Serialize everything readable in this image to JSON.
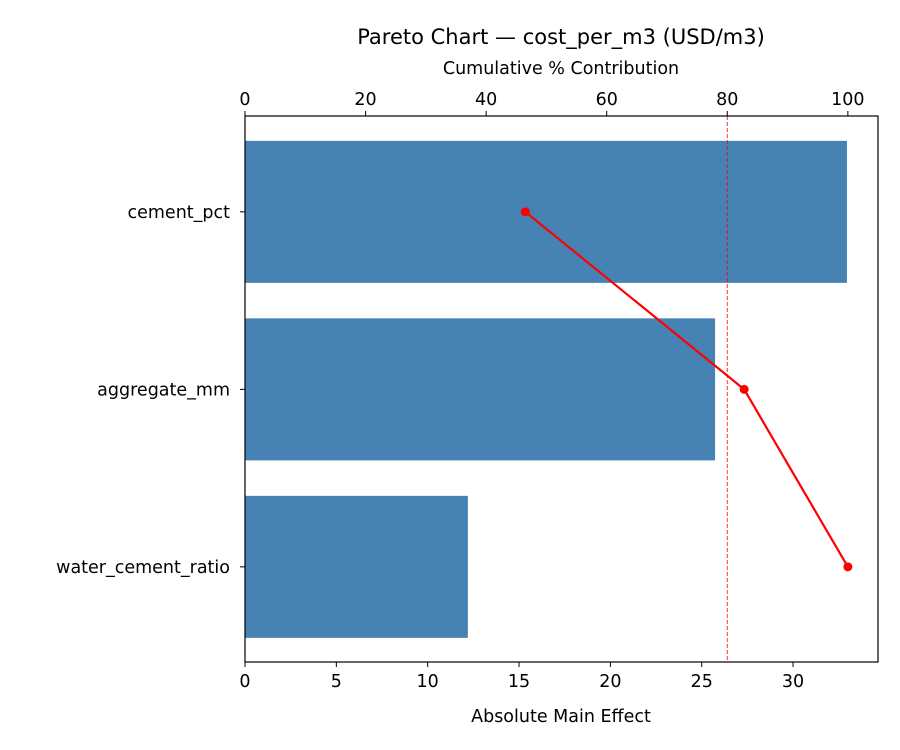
{
  "chart_data": {
    "type": "bar",
    "orientation": "horizontal",
    "title": "Pareto Chart — cost_per_m3 (USD/m3)",
    "xlabel": "Absolute Main Effect",
    "x2label": "Cumulative % Contribution",
    "categories": [
      "cement_pct",
      "aggregate_mm",
      "water_cement_ratio"
    ],
    "values": [
      32.95,
      25.73,
      12.2
    ],
    "cumulative_pct": [
      46.5,
      82.8,
      100
    ],
    "threshold_pct": 80,
    "xlim": [
      0,
      34.65
    ],
    "x2lim": [
      0,
      105
    ],
    "xticks": [
      0,
      5,
      10,
      15,
      20,
      25,
      30
    ],
    "x2ticks": [
      0,
      20,
      40,
      60,
      80,
      100
    ],
    "grid": false,
    "colors": {
      "bar": "#4682b4",
      "line": "#ff0000",
      "threshold": "#ff0000"
    }
  }
}
